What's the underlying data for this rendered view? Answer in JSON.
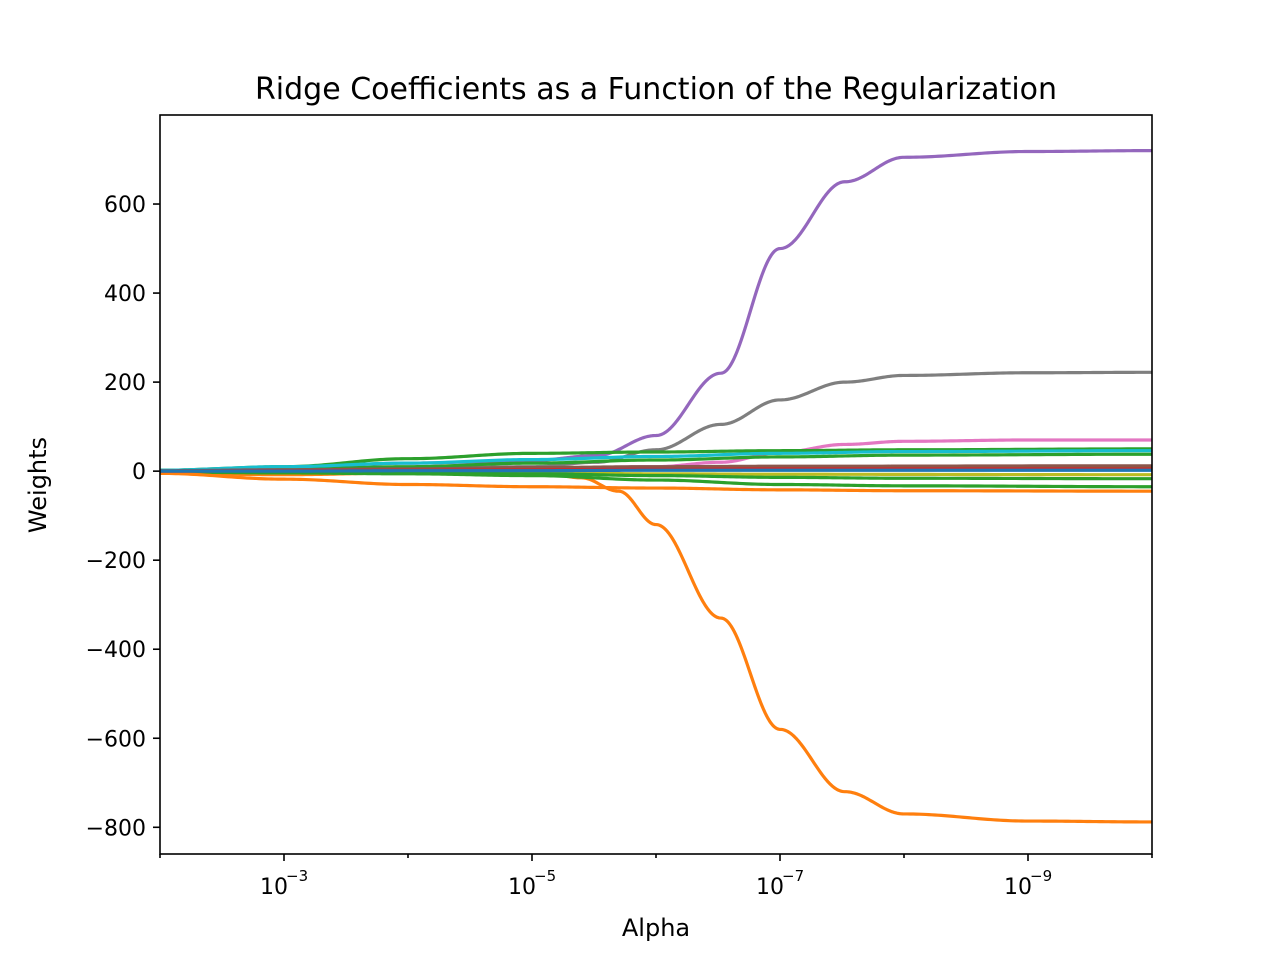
{
  "chart_data": {
    "type": "line",
    "title": "Ridge Coefficients as a Function of the Regularization",
    "xlabel": "Alpha",
    "ylabel": "Weights",
    "x_scale": "log",
    "x_reversed": true,
    "xlim": [
      0.01,
      1e-10
    ],
    "ylim": [
      -860,
      800
    ],
    "x_ticks": [
      {
        "value": 0.001,
        "base": "10",
        "exp": "−3"
      },
      {
        "value": 1e-05,
        "base": "10",
        "exp": "−5"
      },
      {
        "value": 1e-07,
        "base": "10",
        "exp": "−7"
      },
      {
        "value": 1e-09,
        "base": "10",
        "exp": "−9"
      }
    ],
    "y_ticks": [
      {
        "value": 600,
        "label": "600"
      },
      {
        "value": 400,
        "label": "400"
      },
      {
        "value": 200,
        "label": "200"
      },
      {
        "value": 0,
        "label": "0"
      },
      {
        "value": -200,
        "label": "−200"
      },
      {
        "value": -400,
        "label": "−400"
      },
      {
        "value": -600,
        "label": "−600"
      },
      {
        "value": -800,
        "label": "−800"
      }
    ],
    "x_range_data": [
      0.01,
      1e-10
    ],
    "grid": false,
    "legend": "none",
    "series": [
      {
        "color": "#9467bd",
        "points": [
          [
            0.01,
            2
          ],
          [
            0.001,
            8
          ],
          [
            0.0001,
            18
          ],
          [
            1e-05,
            24
          ],
          [
            3e-06,
            35
          ],
          [
            1e-06,
            80
          ],
          [
            3e-07,
            220
          ],
          [
            1e-07,
            500
          ],
          [
            3e-08,
            650
          ],
          [
            1e-08,
            705
          ],
          [
            1e-09,
            718
          ],
          [
            1e-10,
            720
          ]
        ]
      },
      {
        "color": "#ff7f0e",
        "points": [
          [
            0.01,
            -5
          ],
          [
            0.001,
            -8
          ],
          [
            0.0001,
            -4
          ],
          [
            1e-05,
            2
          ],
          [
            4e-06,
            -15
          ],
          [
            2e-06,
            -45
          ],
          [
            1e-06,
            -120
          ],
          [
            3e-07,
            -330
          ],
          [
            1e-07,
            -580
          ],
          [
            3e-08,
            -720
          ],
          [
            1e-08,
            -770
          ],
          [
            1e-09,
            -786
          ],
          [
            1e-10,
            -788
          ]
        ]
      },
      {
        "color": "#7f7f7f",
        "points": [
          [
            0.01,
            1
          ],
          [
            0.001,
            3
          ],
          [
            0.0001,
            6
          ],
          [
            1e-05,
            10
          ],
          [
            3e-06,
            20
          ],
          [
            1e-06,
            48
          ],
          [
            3e-07,
            105
          ],
          [
            1e-07,
            160
          ],
          [
            3e-08,
            200
          ],
          [
            1e-08,
            215
          ],
          [
            1e-09,
            221
          ],
          [
            1e-10,
            222
          ]
        ]
      },
      {
        "color": "#e377c2",
        "points": [
          [
            0.01,
            0
          ],
          [
            0.001,
            1
          ],
          [
            0.0001,
            3
          ],
          [
            1e-05,
            6
          ],
          [
            1e-06,
            10
          ],
          [
            3e-07,
            20
          ],
          [
            1e-07,
            42
          ],
          [
            3e-08,
            60
          ],
          [
            1e-08,
            67
          ],
          [
            1e-09,
            70
          ],
          [
            1e-10,
            70
          ]
        ]
      },
      {
        "color": "#2ca02c",
        "points": [
          [
            0.01,
            2
          ],
          [
            0.001,
            10
          ],
          [
            0.0001,
            28
          ],
          [
            1e-05,
            40
          ],
          [
            1e-06,
            43
          ],
          [
            1e-07,
            46
          ],
          [
            1e-08,
            48
          ],
          [
            1e-10,
            50
          ]
        ]
      },
      {
        "color": "#2ca02c",
        "points": [
          [
            0.01,
            1
          ],
          [
            0.001,
            4
          ],
          [
            0.0001,
            10
          ],
          [
            1e-05,
            18
          ],
          [
            1e-06,
            25
          ],
          [
            1e-07,
            32
          ],
          [
            1e-08,
            36
          ],
          [
            1e-10,
            38
          ]
        ]
      },
      {
        "color": "#17becf",
        "points": [
          [
            0.01,
            2
          ],
          [
            0.001,
            10
          ],
          [
            0.0001,
            18
          ],
          [
            1e-05,
            26
          ],
          [
            1e-06,
            33
          ],
          [
            1e-07,
            40
          ],
          [
            1e-08,
            44
          ],
          [
            1e-10,
            46
          ]
        ]
      },
      {
        "color": "#2ca02c",
        "points": [
          [
            0.01,
            0
          ],
          [
            0.001,
            2
          ],
          [
            0.0001,
            4
          ],
          [
            1e-05,
            6
          ],
          [
            1e-06,
            7
          ],
          [
            1e-07,
            7
          ],
          [
            1e-10,
            8
          ]
        ]
      },
      {
        "color": "#8c564b",
        "points": [
          [
            0.01,
            1
          ],
          [
            0.001,
            3
          ],
          [
            0.0001,
            5
          ],
          [
            1e-05,
            8
          ],
          [
            1e-06,
            10
          ],
          [
            1e-07,
            11
          ],
          [
            1e-10,
            12
          ]
        ]
      },
      {
        "color": "#bcbd22",
        "points": [
          [
            0.01,
            0
          ],
          [
            0.001,
            -1
          ],
          [
            0.0001,
            -2
          ],
          [
            1e-05,
            -4
          ],
          [
            1e-06,
            -6
          ],
          [
            1e-07,
            -7
          ],
          [
            1e-10,
            -8
          ]
        ]
      },
      {
        "color": "#2ca02c",
        "points": [
          [
            0.01,
            -1
          ],
          [
            0.001,
            -2
          ],
          [
            0.0001,
            -4
          ],
          [
            1e-05,
            -6
          ],
          [
            1e-06,
            -10
          ],
          [
            1e-07,
            -14
          ],
          [
            1e-08,
            -16
          ],
          [
            1e-10,
            -17
          ]
        ]
      },
      {
        "color": "#2ca02c",
        "points": [
          [
            0.01,
            -2
          ],
          [
            0.001,
            -4
          ],
          [
            0.0001,
            -6
          ],
          [
            1e-05,
            -10
          ],
          [
            1e-06,
            -20
          ],
          [
            1e-07,
            -30
          ],
          [
            1e-08,
            -33
          ],
          [
            1e-10,
            -35
          ]
        ]
      },
      {
        "color": "#ff7f0e",
        "points": [
          [
            0.01,
            -5
          ],
          [
            0.001,
            -18
          ],
          [
            0.0001,
            -30
          ],
          [
            1e-05,
            -35
          ],
          [
            1e-06,
            -38
          ],
          [
            1e-07,
            -42
          ],
          [
            1e-08,
            -44
          ],
          [
            1e-10,
            -45
          ]
        ]
      },
      {
        "color": "#d62728",
        "points": [
          [
            0.01,
            0
          ],
          [
            0.001,
            1
          ],
          [
            0.0001,
            2
          ],
          [
            1e-05,
            3
          ],
          [
            1e-06,
            4
          ],
          [
            1e-07,
            5
          ],
          [
            1e-10,
            5
          ]
        ]
      },
      {
        "color": "#1f77b4",
        "points": [
          [
            0.01,
            0
          ],
          [
            0.001,
            0
          ],
          [
            0.0001,
            1
          ],
          [
            1e-05,
            1
          ],
          [
            1e-06,
            2
          ],
          [
            1e-07,
            2
          ],
          [
            1e-10,
            2
          ]
        ]
      }
    ]
  }
}
